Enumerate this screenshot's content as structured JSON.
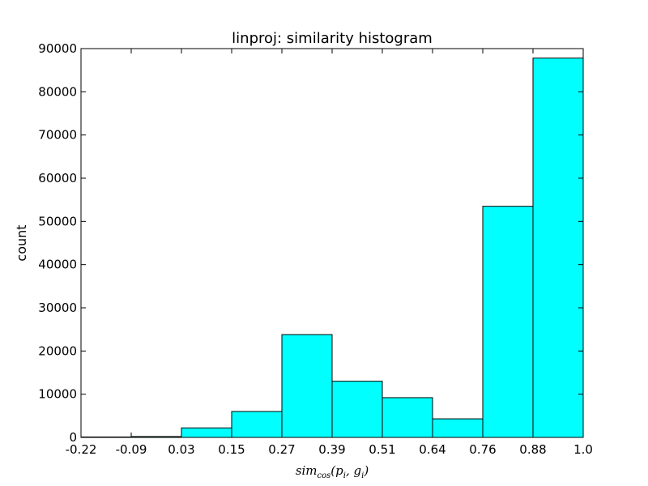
{
  "chart_data": {
    "type": "bar",
    "title": "linproj: similarity histogram",
    "xlabel": "sim_{cos}(p_i, g_i)",
    "ylabel": "count",
    "bin_edges": [
      -0.22,
      -0.09,
      0.03,
      0.15,
      0.27,
      0.39,
      0.51,
      0.64,
      0.76,
      0.88,
      1.0
    ],
    "x_tick_labels": [
      "-0.22",
      "-0.09",
      "0.03",
      "0.15",
      "0.27",
      "0.39",
      "0.51",
      "0.64",
      "0.76",
      "0.88",
      "1.0"
    ],
    "values": [
      100,
      200,
      2200,
      6000,
      23800,
      13000,
      9200,
      4300,
      53500,
      87800
    ],
    "ylim": [
      0,
      90000
    ],
    "y_ticks": [
      0,
      10000,
      20000,
      30000,
      40000,
      50000,
      60000,
      70000,
      80000,
      90000
    ],
    "y_tick_labels": [
      "0",
      "10000",
      "20000",
      "30000",
      "40000",
      "50000",
      "60000",
      "70000",
      "80000",
      "90000"
    ],
    "grid": false,
    "bar_color": "#00ffff",
    "edge_color": "#000000"
  }
}
